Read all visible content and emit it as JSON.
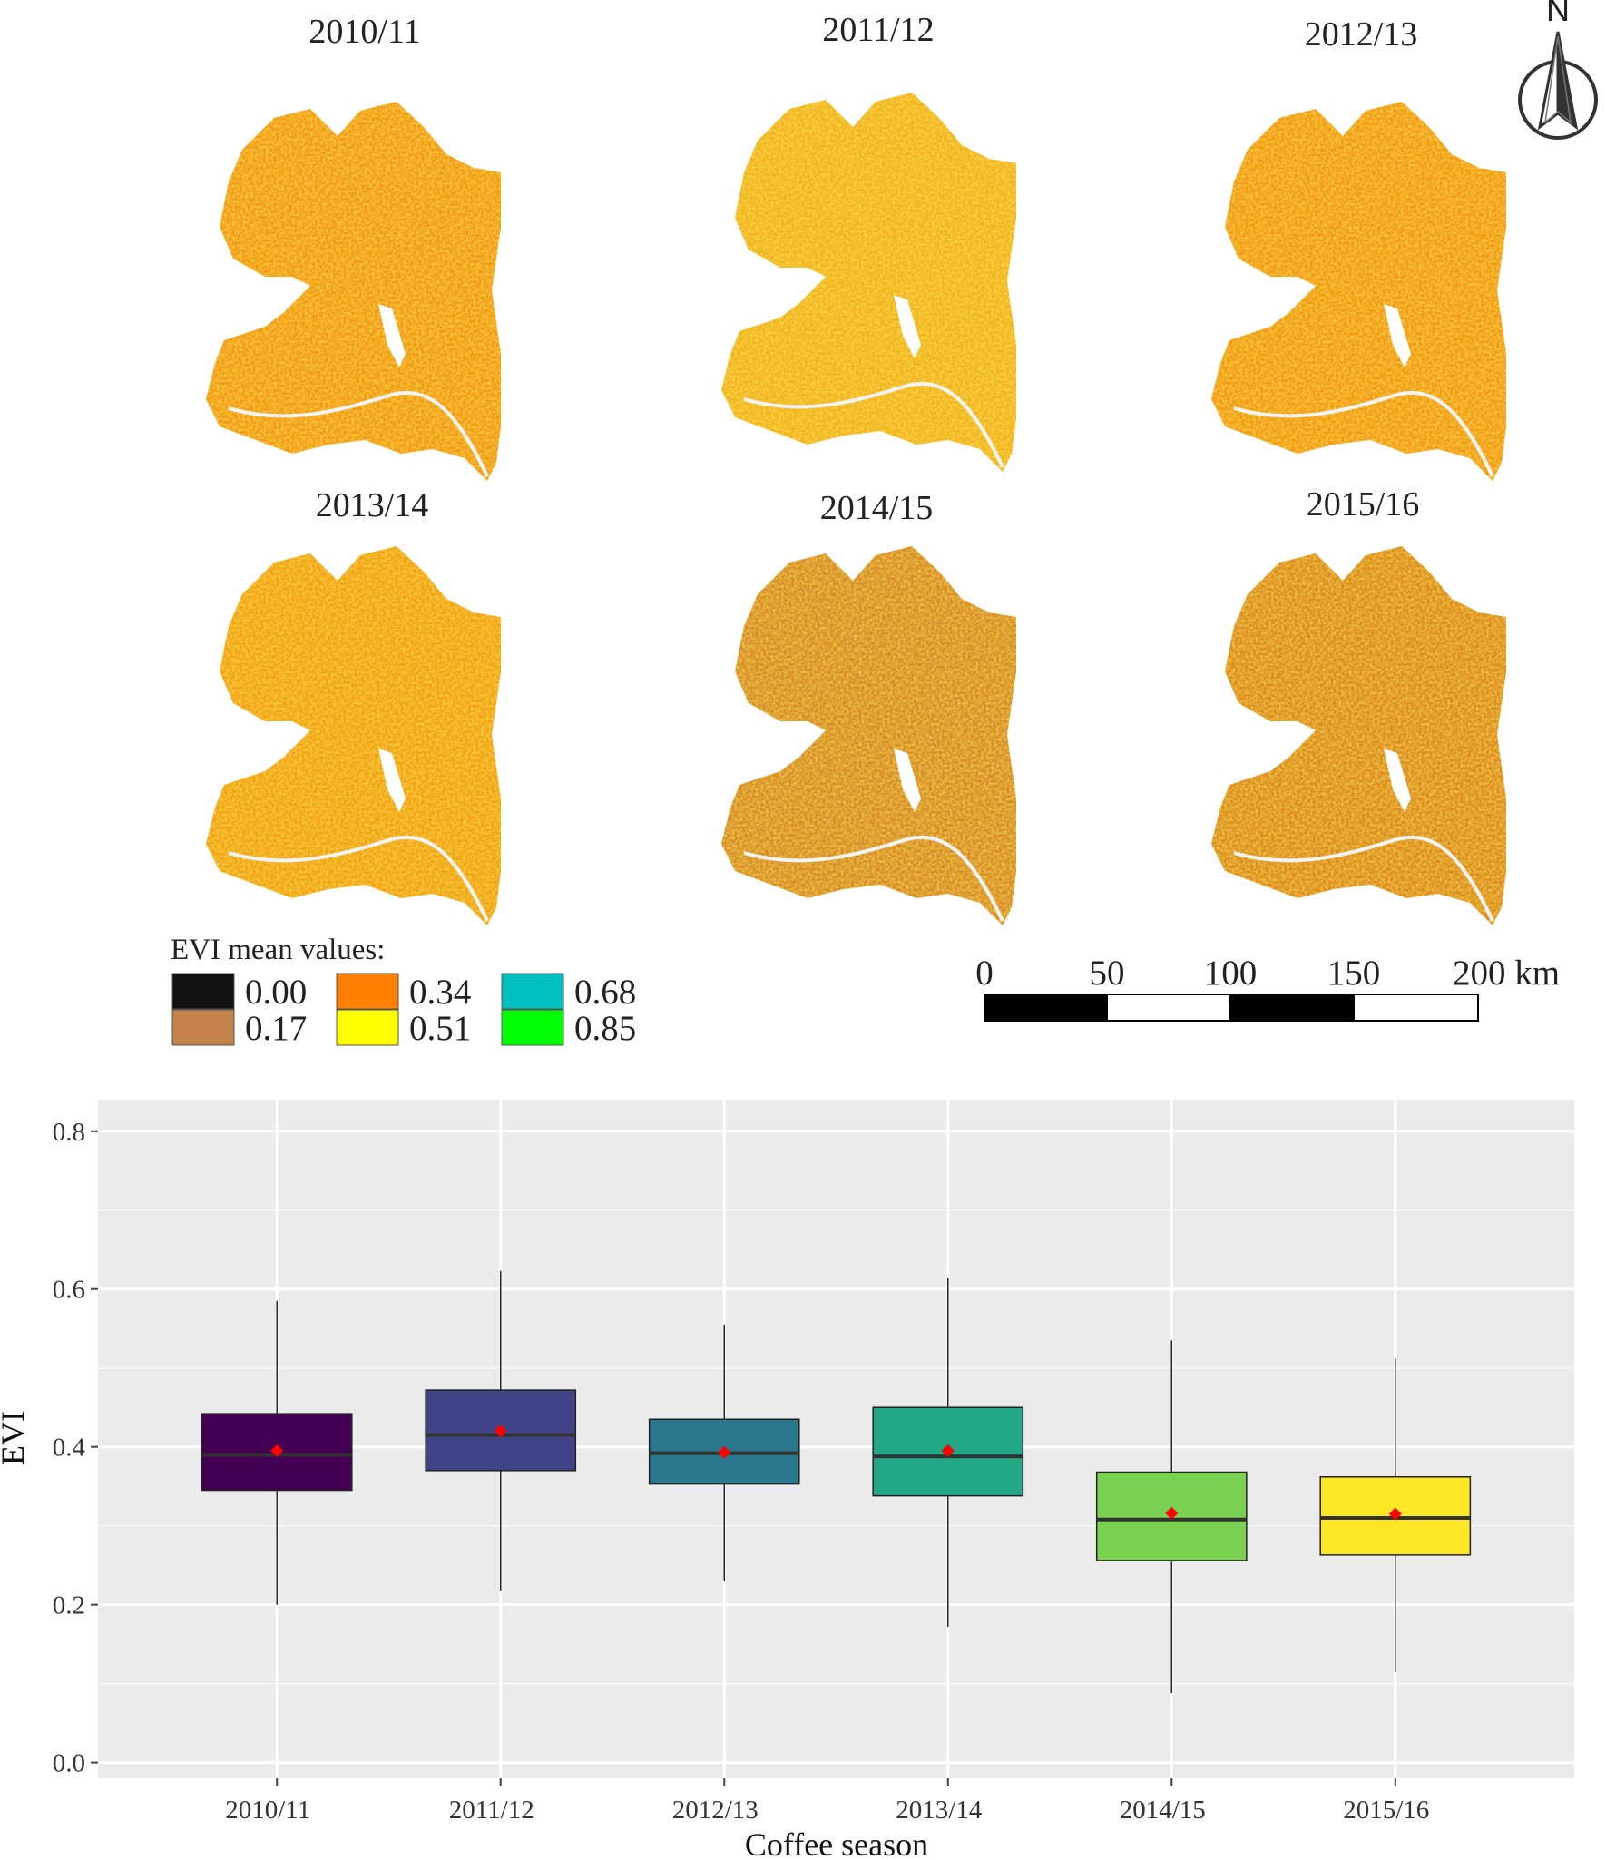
{
  "maps": {
    "panels": [
      {
        "title": "2010/11",
        "tint": "#f29a14"
      },
      {
        "title": "2011/12",
        "tint": "#f2b321"
      },
      {
        "title": "2012/13",
        "tint": "#f29a14"
      },
      {
        "title": "2013/14",
        "tint": "#f2a218"
      },
      {
        "title": "2014/15",
        "tint": "#d98a2a"
      },
      {
        "title": "2015/16",
        "tint": "#de8a22"
      }
    ],
    "legend": {
      "title": "EVI mean values:",
      "items": [
        {
          "label": "0.00",
          "color": "#111111"
        },
        {
          "label": "0.17",
          "color": "#c3824a"
        },
        {
          "label": "0.34",
          "color": "#ff8000"
        },
        {
          "label": "0.51",
          "color": "#ffff00"
        },
        {
          "label": "0.68",
          "color": "#00bfbf"
        },
        {
          "label": "0.85",
          "color": "#00ff00"
        }
      ]
    },
    "scale_bar": {
      "labels": [
        "0",
        "50",
        "100",
        "150",
        "200 km"
      ]
    },
    "north_arrow": {
      "label": "N"
    }
  },
  "chart_data": {
    "type": "box",
    "xlabel": "Coffee season",
    "ylabel": "EVI",
    "ylim": [
      -0.02,
      0.84
    ],
    "y_ticks": [
      0.0,
      0.2,
      0.4,
      0.6,
      0.8
    ],
    "y_tick_labels": [
      "0.0",
      "0.2",
      "0.4",
      "0.6",
      "0.8"
    ],
    "grid": true,
    "categories": [
      "2010/11",
      "2011/12",
      "2012/13",
      "2013/14",
      "2014/15",
      "2015/16"
    ],
    "boxes": [
      {
        "category": "2010/11",
        "whisker_low": 0.2,
        "q1": 0.345,
        "median": 0.39,
        "q3": 0.442,
        "whisker_high": 0.585,
        "mean": 0.395,
        "color": "#440154"
      },
      {
        "category": "2011/12",
        "whisker_low": 0.218,
        "q1": 0.37,
        "median": 0.415,
        "q3": 0.472,
        "whisker_high": 0.623,
        "mean": 0.42,
        "color": "#414487"
      },
      {
        "category": "2012/13",
        "whisker_low": 0.23,
        "q1": 0.353,
        "median": 0.392,
        "q3": 0.435,
        "whisker_high": 0.555,
        "mean": 0.393,
        "color": "#2a788e"
      },
      {
        "category": "2013/14",
        "whisker_low": 0.172,
        "q1": 0.338,
        "median": 0.388,
        "q3": 0.45,
        "whisker_high": 0.615,
        "mean": 0.395,
        "color": "#22a884"
      },
      {
        "category": "2014/15",
        "whisker_low": 0.088,
        "q1": 0.256,
        "median": 0.308,
        "q3": 0.368,
        "whisker_high": 0.535,
        "mean": 0.316,
        "color": "#7ad151"
      },
      {
        "category": "2015/16",
        "whisker_low": 0.115,
        "q1": 0.263,
        "median": 0.31,
        "q3": 0.362,
        "whisker_high": 0.512,
        "mean": 0.315,
        "color": "#fde725"
      }
    ],
    "mean_marker_color": "#ff0000"
  }
}
